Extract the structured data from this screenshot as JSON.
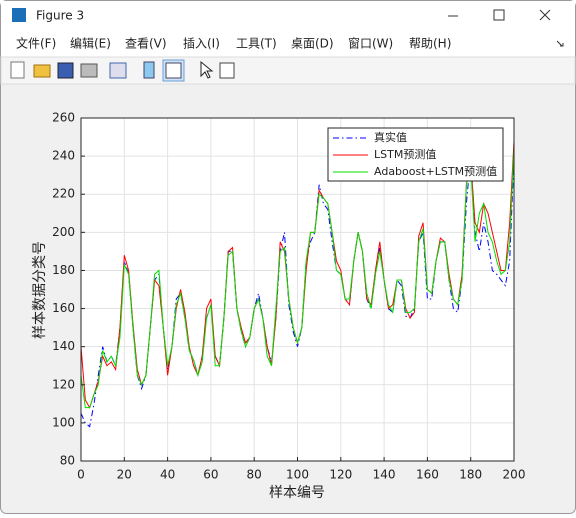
{
  "window": {
    "title": "Figure 3",
    "menu": [
      "文件(F)",
      "编辑(E)",
      "查看(V)",
      "插入(I)",
      "工具(T)",
      "桌面(D)",
      "窗口(W)",
      "帮助(H)"
    ]
  },
  "chart_data": {
    "type": "line",
    "x": [
      0,
      2,
      4,
      6,
      8,
      10,
      12,
      14,
      16,
      18,
      20,
      22,
      24,
      26,
      28,
      30,
      32,
      34,
      36,
      38,
      40,
      42,
      44,
      46,
      48,
      50,
      52,
      54,
      56,
      58,
      60,
      62,
      64,
      66,
      68,
      70,
      72,
      74,
      76,
      78,
      80,
      82,
      84,
      86,
      88,
      90,
      92,
      94,
      96,
      98,
      100,
      102,
      104,
      106,
      108,
      110,
      112,
      114,
      116,
      118,
      120,
      122,
      124,
      126,
      128,
      130,
      132,
      134,
      136,
      138,
      140,
      142,
      144,
      146,
      148,
      150,
      152,
      154,
      156,
      158,
      160,
      162,
      164,
      166,
      168,
      170,
      172,
      174,
      176,
      178,
      180,
      182,
      184,
      186,
      188,
      190,
      192,
      194,
      196,
      198,
      200
    ],
    "series": [
      {
        "name": "真实值",
        "color": "#0000ff",
        "dash": "dashdot",
        "values": [
          105,
          100,
          98,
          110,
          125,
          140,
          132,
          135,
          130,
          150,
          185,
          178,
          150,
          125,
          118,
          125,
          150,
          175,
          178,
          150,
          128,
          140,
          165,
          168,
          155,
          138,
          133,
          125,
          135,
          155,
          162,
          135,
          130,
          155,
          190,
          190,
          160,
          148,
          140,
          145,
          160,
          168,
          155,
          140,
          132,
          155,
          190,
          200,
          162,
          148,
          140,
          150,
          185,
          195,
          200,
          225,
          215,
          212,
          195,
          180,
          178,
          165,
          162,
          185,
          200,
          190,
          165,
          160,
          178,
          192,
          175,
          160,
          158,
          175,
          172,
          156,
          155,
          160,
          195,
          200,
          165,
          165,
          185,
          195,
          195,
          175,
          160,
          158,
          175,
          215,
          240,
          200,
          190,
          205,
          195,
          180,
          178,
          175,
          172,
          185,
          240
        ]
      },
      {
        "name": "LSTM预测值",
        "color": "#ff0000",
        "dash": "solid",
        "values": [
          140,
          112,
          108,
          115,
          122,
          135,
          130,
          132,
          128,
          150,
          188,
          180,
          152,
          128,
          120,
          125,
          150,
          175,
          172,
          150,
          125,
          140,
          160,
          170,
          158,
          140,
          130,
          125,
          135,
          160,
          165,
          135,
          130,
          155,
          190,
          192,
          160,
          150,
          142,
          145,
          160,
          165,
          155,
          140,
          130,
          155,
          195,
          190,
          165,
          150,
          142,
          150,
          180,
          200,
          200,
          222,
          218,
          215,
          200,
          185,
          180,
          165,
          162,
          185,
          200,
          190,
          165,
          162,
          180,
          195,
          175,
          160,
          162,
          175,
          175,
          160,
          155,
          158,
          198,
          205,
          170,
          168,
          185,
          197,
          195,
          178,
          165,
          162,
          178,
          225,
          238,
          205,
          200,
          215,
          210,
          200,
          190,
          180,
          180,
          205,
          248
        ]
      },
      {
        "name": "Adaboost+LSTM预测值",
        "color": "#00e000",
        "dash": "solid",
        "values": [
          125,
          108,
          108,
          115,
          120,
          138,
          132,
          135,
          130,
          145,
          183,
          178,
          150,
          125,
          120,
          125,
          150,
          178,
          180,
          150,
          130,
          140,
          162,
          168,
          155,
          138,
          133,
          125,
          132,
          155,
          162,
          130,
          130,
          155,
          188,
          190,
          160,
          148,
          140,
          145,
          160,
          165,
          155,
          135,
          130,
          160,
          190,
          192,
          165,
          150,
          142,
          150,
          185,
          200,
          200,
          220,
          218,
          215,
          200,
          180,
          178,
          165,
          165,
          185,
          200,
          190,
          168,
          160,
          178,
          190,
          175,
          162,
          158,
          175,
          175,
          158,
          158,
          160,
          195,
          202,
          170,
          168,
          185,
          195,
          195,
          175,
          165,
          162,
          175,
          225,
          235,
          195,
          210,
          215,
          200,
          195,
          185,
          178,
          180,
          195,
          245
        ]
      }
    ],
    "xlabel": "样本编号",
    "ylabel": "样本数据分类号",
    "xlim": [
      0,
      200
    ],
    "ylim": [
      80,
      260
    ],
    "xticks": [
      0,
      20,
      40,
      60,
      80,
      100,
      120,
      140,
      160,
      180,
      200
    ],
    "yticks": [
      80,
      100,
      120,
      140,
      160,
      180,
      200,
      220,
      240,
      260
    ],
    "grid": true,
    "legend": "top-right"
  }
}
